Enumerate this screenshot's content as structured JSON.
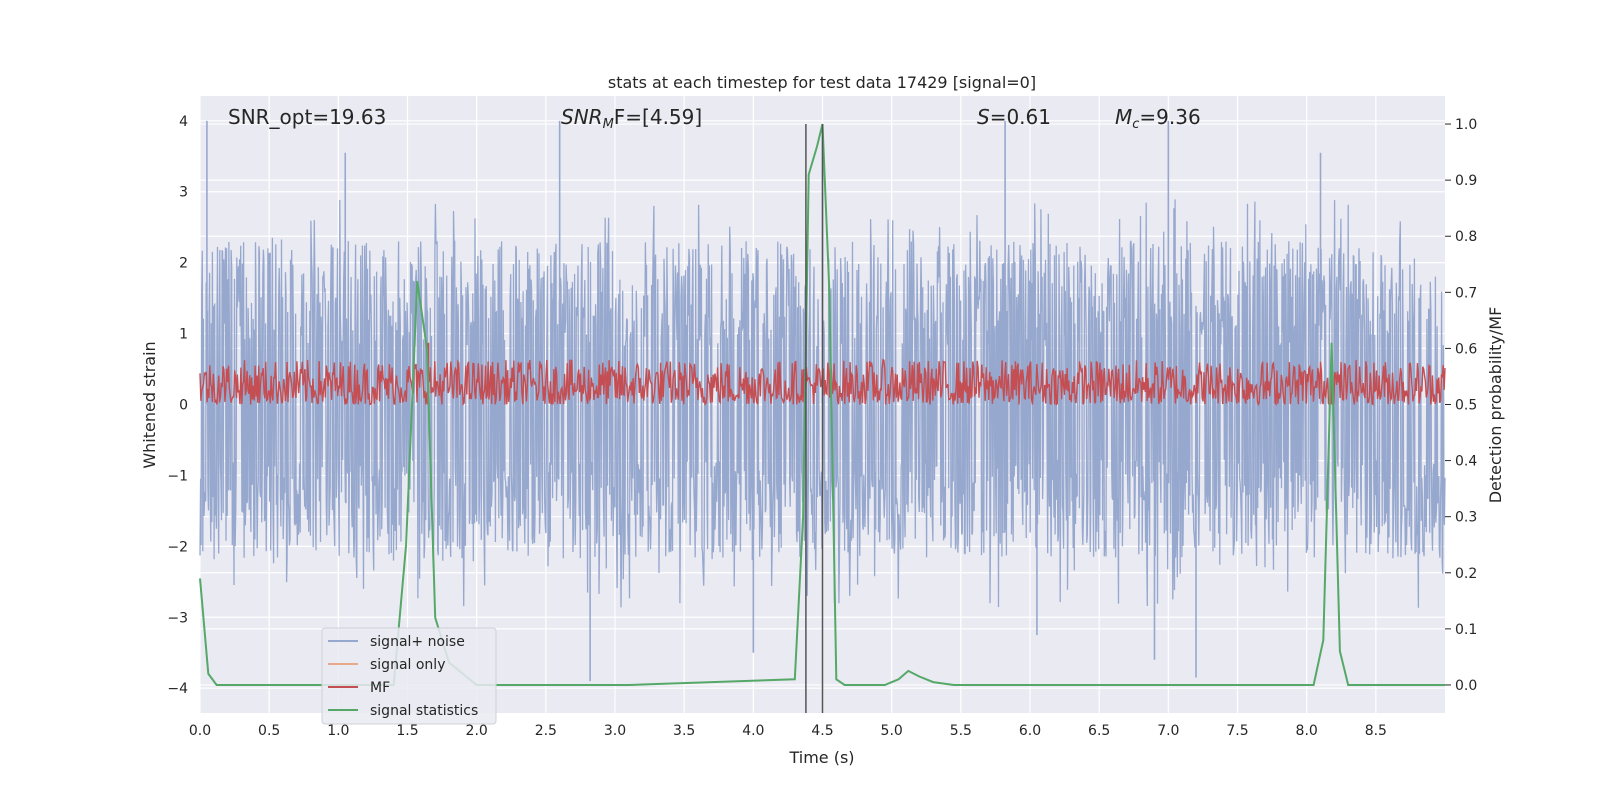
{
  "chart_data": {
    "type": "line",
    "title": "stats at each timestep for test data 17429 [signal=0]",
    "xlabel": "Time (s)",
    "ylabel_left": "Whitened strain",
    "ylabel_right": "Detection probability/MF",
    "xlim": [
      0.0,
      9.0
    ],
    "ylim_left": [
      -4.35,
      4.35
    ],
    "ylim_right": [
      -0.05,
      1.05
    ],
    "x_ticks": [
      "0.0",
      "0.5",
      "1.0",
      "1.5",
      "2.0",
      "2.5",
      "3.0",
      "3.5",
      "4.0",
      "4.5",
      "5.0",
      "5.5",
      "6.0",
      "6.5",
      "7.0",
      "7.5",
      "8.0",
      "8.5"
    ],
    "y_ticks_left": [
      "4",
      "3",
      "2",
      "1",
      "0",
      "−1",
      "−2",
      "−3",
      "−4"
    ],
    "y_ticks_right": [
      "1.0",
      "0.9",
      "0.8",
      "0.7",
      "0.6",
      "0.5",
      "0.4",
      "0.3",
      "0.2",
      "0.1",
      "0.0"
    ],
    "grid": true,
    "legend_position": "lower-left",
    "annotations": [
      "SNR_opt=19.63",
      "SNR",
      "M",
      "F=[4.59]",
      "S",
      "=0.61",
      "M",
      "c",
      "=9.36"
    ],
    "vertical_lines_x": [
      4.38,
      4.5
    ],
    "series": [
      {
        "name": "signal+ noise",
        "color": "#97a8ce",
        "axis": "left",
        "description_range": [
          -2.6,
          2.6
        ],
        "noise_band": [
          -1.55,
          1.65
        ],
        "spike_peaks_x": [
          0.05,
          1.05,
          2.6,
          4.5,
          5.82,
          7.0,
          8.1
        ],
        "spike_peaks_y": [
          4.0,
          3.55,
          4.0,
          3.85,
          4.0,
          4.0,
          3.55
        ],
        "spike_troughs_x": [
          2.82,
          4.0,
          6.05,
          6.9,
          7.2
        ],
        "spike_troughs_y": [
          -3.9,
          -3.5,
          -3.25,
          -3.6,
          -3.85
        ]
      },
      {
        "name": "signal only",
        "color": "#e8a88a",
        "axis": "left",
        "values": []
      },
      {
        "name": "MF",
        "color": "#c44e52",
        "axis": "right",
        "baseline": 0.52,
        "band": [
          0.5,
          0.58
        ],
        "peak": {
          "x": 1.65,
          "y": 0.61
        }
      },
      {
        "name": "signal statistics",
        "color": "#55a868",
        "axis": "right",
        "x": [
          0.0,
          0.06,
          0.12,
          0.2,
          1.4,
          1.49,
          1.57,
          1.64,
          1.7,
          1.8,
          1.9,
          2.0,
          3.1,
          4.3,
          4.36,
          4.4,
          4.46,
          4.5,
          4.55,
          4.6,
          4.66,
          4.75,
          4.95,
          5.05,
          5.12,
          5.2,
          5.3,
          5.45,
          5.6,
          8.05,
          8.12,
          8.18,
          8.24,
          8.3,
          8.35,
          9.0
        ],
        "y": [
          0.19,
          0.02,
          0.0,
          0.0,
          0.0,
          0.25,
          0.72,
          0.6,
          0.12,
          0.04,
          0.02,
          0.0,
          0.0,
          0.01,
          0.3,
          0.91,
          0.96,
          1.0,
          0.7,
          0.01,
          0.0,
          0.0,
          0.0,
          0.01,
          0.025,
          0.015,
          0.005,
          0.0,
          0.0,
          0.0,
          0.08,
          0.61,
          0.06,
          0.0,
          0.0,
          0.0
        ]
      }
    ]
  }
}
